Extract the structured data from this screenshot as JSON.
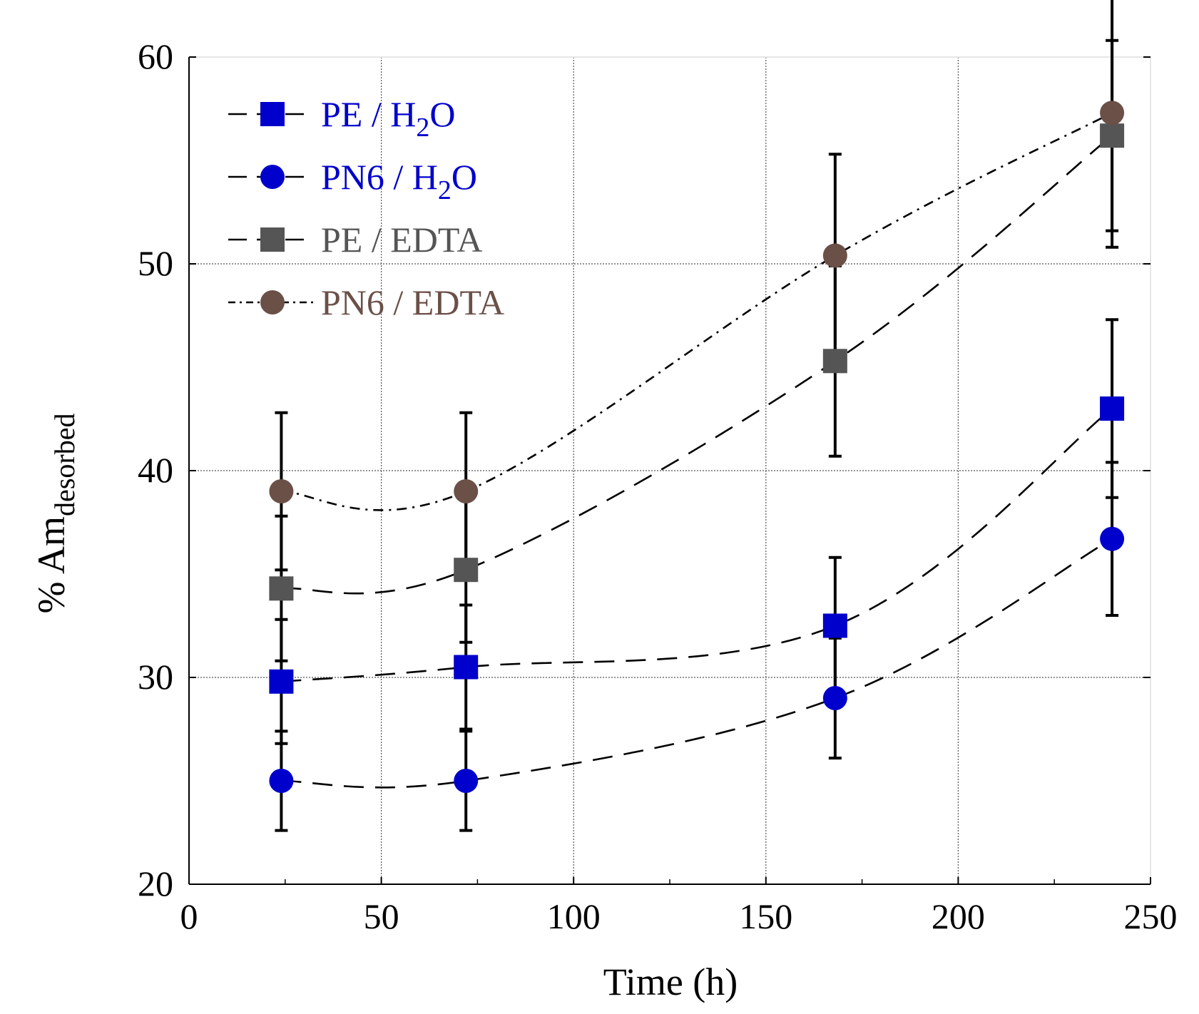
{
  "chart_data": {
    "type": "line",
    "title": "",
    "xlabel": "Time (h)",
    "ylabel": "% Am",
    "ylabel_subscript": "desorbed",
    "xlim": [
      0,
      250
    ],
    "ylim": [
      20,
      60
    ],
    "xticks": [
      0,
      50,
      100,
      150,
      200,
      250
    ],
    "yticks": [
      20,
      30,
      40,
      50,
      60
    ],
    "grid": true,
    "legend_position": "top-left",
    "x": [
      24,
      72,
      168,
      240
    ],
    "series": [
      {
        "name": "PE / H2O",
        "legend_main": "PE / H",
        "legend_sub": "2",
        "legend_tail": "O",
        "marker": "square",
        "color": "#0000cc",
        "dash": "long-dash",
        "values": [
          29.8,
          30.5,
          32.5,
          43.0
        ],
        "errors": [
          3.0,
          3.0,
          3.3,
          4.3
        ]
      },
      {
        "name": "PN6 / H2O",
        "legend_main": "PN6 / H",
        "legend_sub": "2",
        "legend_tail": "O",
        "marker": "circle",
        "color": "#0000cc",
        "dash": "long-dash",
        "values": [
          25.0,
          25.0,
          29.0,
          36.7
        ],
        "errors": [
          2.4,
          2.4,
          2.9,
          3.7
        ]
      },
      {
        "name": "PE / EDTA",
        "legend_main": "PE / EDTA",
        "legend_sub": "",
        "legend_tail": "",
        "marker": "square",
        "color": "#555555",
        "dash": "long-dash",
        "values": [
          34.3,
          35.2,
          45.3,
          56.2
        ],
        "errors": [
          3.5,
          3.5,
          4.6,
          4.6
        ]
      },
      {
        "name": "PN6 / EDTA",
        "legend_main": "PN6 / EDTA",
        "legend_sub": "",
        "legend_tail": "",
        "marker": "circle",
        "color": "#6b5048",
        "dash": "dash-dot",
        "values": [
          39.0,
          39.0,
          50.4,
          57.3
        ],
        "errors": [
          3.8,
          3.8,
          4.9,
          6.5
        ]
      }
    ]
  }
}
